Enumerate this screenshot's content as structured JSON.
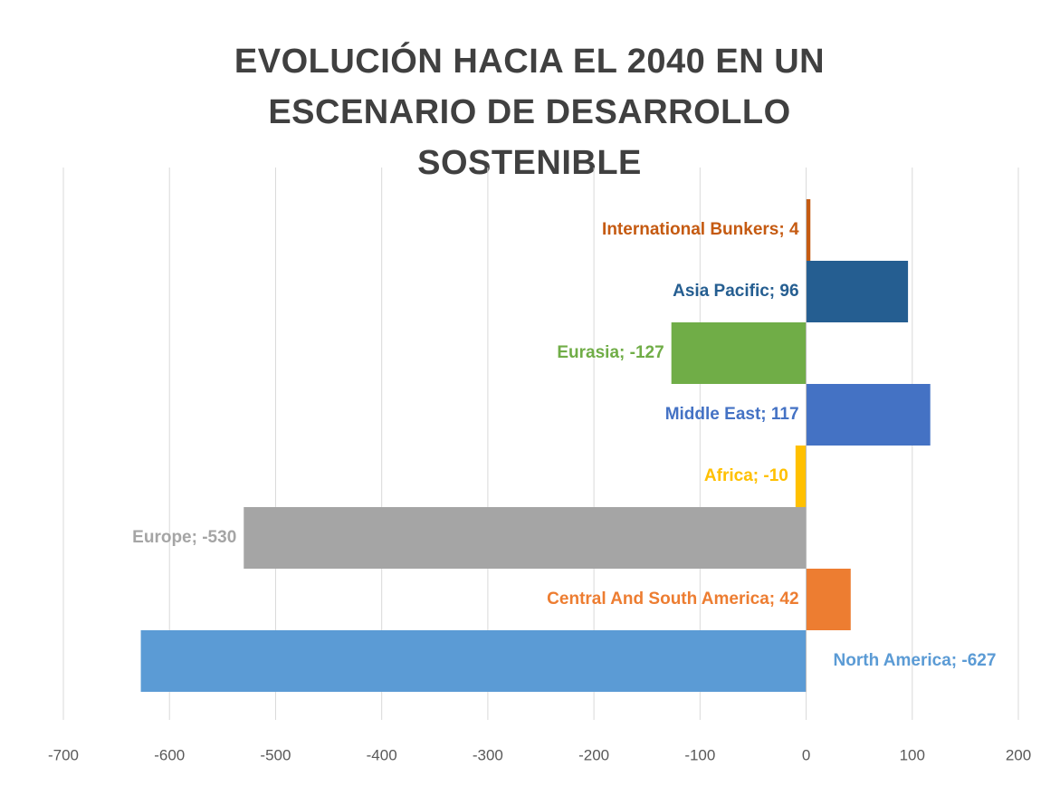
{
  "chart_data": {
    "type": "barh",
    "title": "EVOLUCIÓN HACIA EL 2040 EN UN ESCENARIO DE DESARROLLO SOSTENIBLE",
    "categories": [
      "International Bunkers",
      "Asia Pacific",
      "Eurasia",
      "Middle East",
      "Africa",
      "Europe",
      "Central And South America",
      "North America"
    ],
    "values": [
      4,
      96,
      -127,
      117,
      -10,
      -530,
      42,
      -627
    ],
    "value_labels": [
      "International Bunkers; 4",
      "Asia Pacific; 96",
      "Eurasia; -127",
      "Middle East; 117",
      "Africa; -10",
      "Europe; -530",
      "Central And South America; 42",
      "North America; -627"
    ],
    "colors": [
      "#c55a11",
      "#255e91",
      "#70ad47",
      "#4472c4",
      "#ffc000",
      "#a5a5a5",
      "#ed7d31",
      "#5b9bd5"
    ],
    "xlim": [
      -700,
      200
    ],
    "xticks": [
      -700,
      -600,
      -500,
      -400,
      -300,
      -200,
      -100,
      0,
      100,
      200
    ],
    "grid": true
  }
}
